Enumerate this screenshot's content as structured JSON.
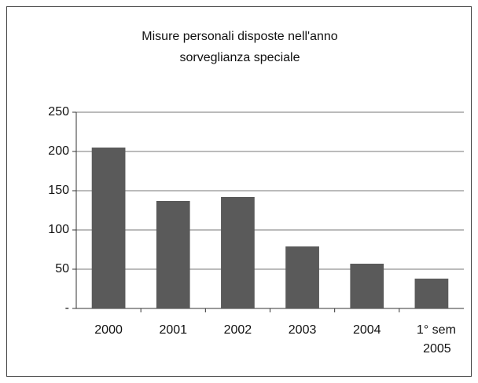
{
  "chart_data": {
    "type": "bar",
    "title": [
      "Misure personali disposte nell'anno",
      "sorveglianza speciale"
    ],
    "categories": [
      "2000",
      "2001",
      "2002",
      "2003",
      "2004",
      "1° sem 2005"
    ],
    "values": [
      205,
      137,
      142,
      79,
      57,
      38
    ],
    "color": "#5a5a5a",
    "ylim": [
      0,
      250
    ],
    "yticks": [
      {
        "value": 0,
        "label": "-"
      },
      50,
      100,
      150,
      200,
      250
    ],
    "grid": true
  }
}
